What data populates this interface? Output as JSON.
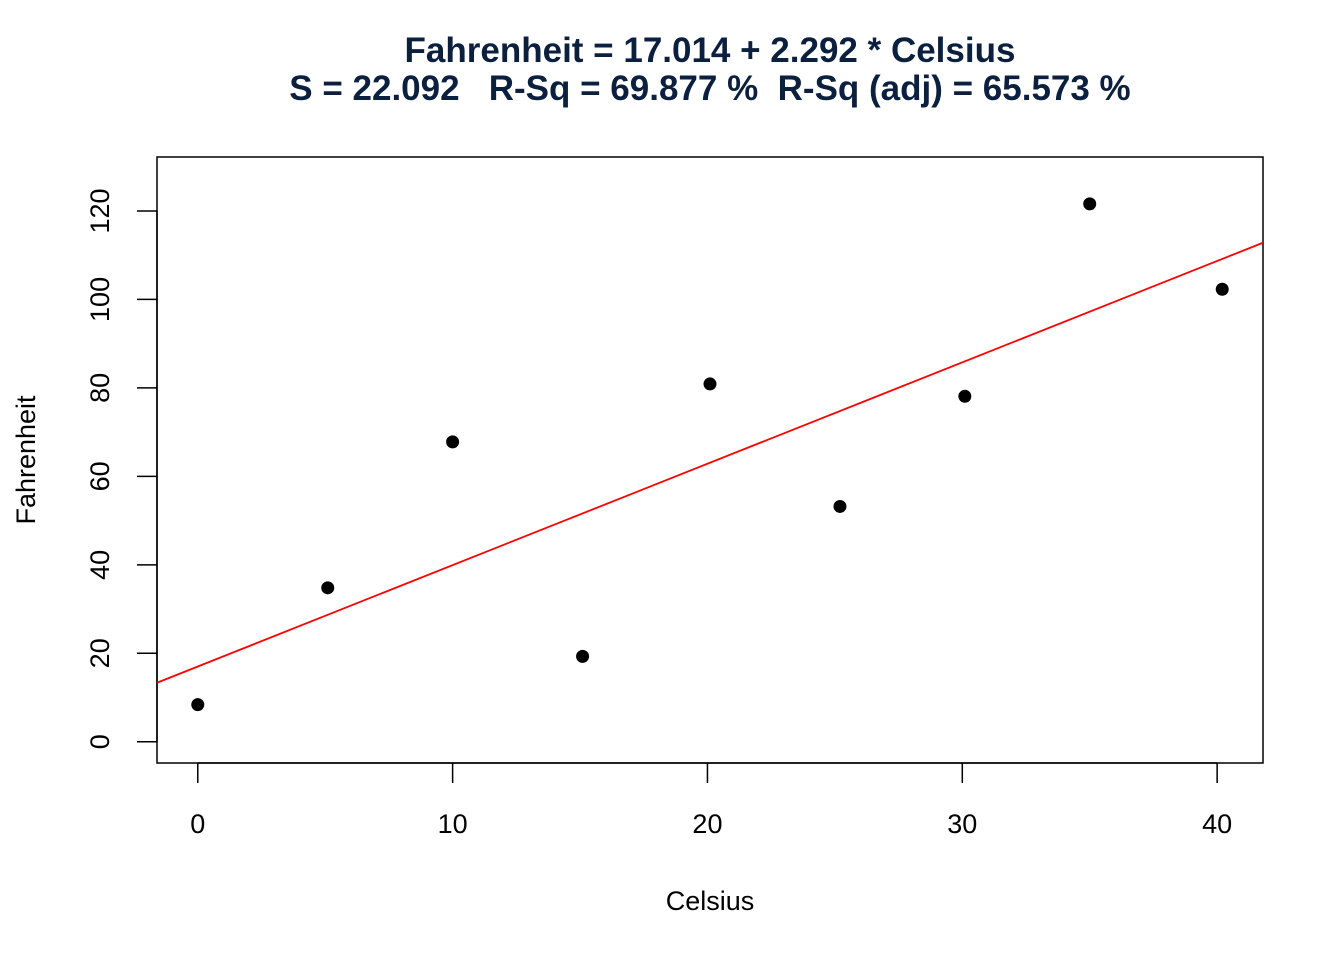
{
  "chart_data": {
    "type": "scatter",
    "title": "Fahrenheit = 17.014 + 2.292 * Celsius",
    "subtitle": "S = 22.092   R-Sq = 69.877 %  R-Sq (adj) = 65.573 %",
    "xlabel": "Celsius",
    "ylabel": "Fahrenheit",
    "xlim": [
      -1.6,
      41.8
    ],
    "ylim": [
      -4.8,
      132.2
    ],
    "x_ticks": [
      0,
      10,
      20,
      30,
      40
    ],
    "y_ticks": [
      0,
      20,
      40,
      60,
      80,
      100,
      120
    ],
    "grid": false,
    "points": {
      "x": [
        0,
        5.1,
        10,
        15.1,
        20.1,
        25.2,
        30.1,
        35,
        40.2
      ],
      "y": [
        8.4,
        34.8,
        67.8,
        19.3,
        80.9,
        53.2,
        78.1,
        121.6,
        102.3
      ]
    },
    "regression": {
      "intercept": 17.014,
      "slope": 2.292
    },
    "colors": {
      "points": "#000000",
      "line": "#ff0000",
      "title": "#0b1f3f"
    }
  }
}
